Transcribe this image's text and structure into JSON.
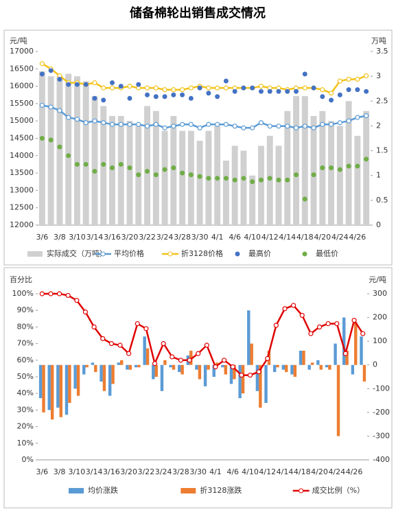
{
  "title": "储备棉轮出销售成交情况",
  "chart_data": [
    {
      "type": "combo",
      "y_label": "元/吨",
      "y2_label": "万吨",
      "categories": [
        "3/6",
        null,
        "3/8",
        null,
        "3/10",
        null,
        "3/14",
        null,
        "3/16",
        null,
        "3/20",
        null,
        "3/22",
        null,
        "3/24",
        null,
        "3/28",
        null,
        "3/30",
        null,
        "4/1",
        null,
        "4/6",
        null,
        "4/10",
        null,
        "4/12",
        null,
        "4/14",
        null,
        "4/18",
        null,
        "4/20",
        null,
        "4/24",
        null,
        "4/26",
        null
      ],
      "ylim": [
        12000,
        17000
      ],
      "yticks": [
        12000,
        12500,
        13000,
        13500,
        14000,
        14500,
        15000,
        15500,
        16000,
        16500,
        17000
      ],
      "y2lim": [
        0,
        3.5
      ],
      "y2ticks": [
        0,
        0.5,
        1,
        1.5,
        2,
        2.5,
        3,
        3.5
      ],
      "series": [
        {
          "name": "实际成交（万吨）",
          "kind": "bar",
          "axis": "y2",
          "color": "#d0d0d0",
          "values": [
            3.1,
            3.0,
            3.0,
            3.05,
            3.0,
            2.9,
            2.6,
            2.4,
            2.2,
            2.2,
            2.1,
            2.0,
            2.4,
            2.3,
            1.9,
            2.2,
            1.9,
            1.9,
            1.7,
            1.9,
            2.0,
            1.3,
            1.6,
            1.5,
            1.0,
            1.6,
            1.8,
            1.6,
            2.3,
            2.6,
            2.6,
            2.2,
            2.3,
            2.1,
            2.0,
            2.5,
            1.8,
            2.3
          ]
        },
        {
          "name": "平均价格",
          "kind": "line",
          "color": "#5b9bd5",
          "values": [
            15450,
            15400,
            15300,
            15100,
            15050,
            14950,
            15000,
            14950,
            14900,
            14900,
            14900,
            14900,
            14850,
            14900,
            14800,
            14850,
            14900,
            14900,
            14800,
            14900,
            14900,
            14900,
            14850,
            14800,
            14800,
            14950,
            14850,
            14850,
            14850,
            14800,
            14850,
            14800,
            14900,
            14900,
            14950,
            15000,
            15100,
            15150
          ]
        },
        {
          "name": "折3128价格",
          "kind": "line",
          "color": "#f2c21a",
          "values": [
            16650,
            16500,
            16300,
            16100,
            16100,
            16050,
            16100,
            15950,
            15950,
            15950,
            16000,
            15950,
            15950,
            15950,
            15900,
            15900,
            15900,
            15950,
            16000,
            15950,
            15950,
            15950,
            15950,
            15950,
            15950,
            16000,
            15950,
            15950,
            15900,
            15950,
            15950,
            15950,
            15900,
            15800,
            16150,
            16200,
            16200,
            16300
          ]
        },
        {
          "name": "最高价",
          "kind": "dot",
          "color": "#4472c4",
          "values": [
            16350,
            16450,
            16200,
            16050,
            16050,
            16050,
            15650,
            15600,
            16100,
            16000,
            15650,
            16050,
            15750,
            15700,
            15700,
            15750,
            15750,
            15650,
            15950,
            15800,
            15700,
            16150,
            15850,
            15950,
            15950,
            15850,
            15850,
            15850,
            15850,
            15850,
            16350,
            15950,
            15700,
            15600,
            15750,
            15900,
            15900,
            15850
          ]
        },
        {
          "name": "最低价",
          "kind": "dot",
          "color": "#70ad47",
          "values": [
            14500,
            14450,
            14250,
            14000,
            13750,
            13750,
            13550,
            13750,
            13650,
            13750,
            13650,
            13450,
            13550,
            13450,
            13600,
            13650,
            13500,
            13450,
            13400,
            13350,
            13350,
            13350,
            13300,
            13350,
            13250,
            13300,
            13350,
            13300,
            13300,
            13450,
            12750,
            13450,
            13650,
            13650,
            13600,
            13700,
            13700,
            13900
          ]
        }
      ]
    },
    {
      "type": "combo",
      "y_label": "百分比",
      "y2_label": "元/吨",
      "categories": [
        "3/6",
        null,
        "3/8",
        null,
        "3/10",
        null,
        "3/14",
        null,
        "3/16",
        null,
        "3/20",
        null,
        "3/22",
        null,
        "3/24",
        null,
        "3/28",
        null,
        "3/30",
        null,
        "4/1",
        null,
        "4/6",
        null,
        "4/10",
        null,
        "4/12",
        null,
        "4/14",
        null,
        "4/18",
        null,
        "4/20",
        null,
        "4/24",
        null,
        "4/26",
        null
      ],
      "ylim": [
        0,
        100
      ],
      "yticks": [
        {
          "value": 0,
          "label": "0%"
        },
        {
          "value": 10,
          "label": "10%"
        },
        {
          "value": 20,
          "label": "20%"
        },
        {
          "value": 30,
          "label": "30%"
        },
        {
          "value": 40,
          "label": "40%"
        },
        {
          "value": 50,
          "label": "50%"
        },
        {
          "value": 60,
          "label": "60%"
        },
        {
          "value": 70,
          "label": "70%"
        },
        {
          "value": 80,
          "label": "80%"
        },
        {
          "value": 90,
          "label": "90%"
        },
        {
          "value": 100,
          "label": "100%"
        }
      ],
      "y2lim": [
        -400,
        300
      ],
      "y2ticks": [
        -400,
        -300,
        -200,
        -100,
        0,
        100,
        200,
        300
      ],
      "series": [
        {
          "name": "均价涨跌",
          "kind": "bar",
          "axis": "y2",
          "color": "#5b9bd5",
          "values": [
            -140,
            -190,
            -180,
            -210,
            -100,
            -40,
            10,
            -70,
            -130,
            10,
            -20,
            -10,
            120,
            -60,
            -110,
            -10,
            -30,
            40,
            -20,
            -90,
            -50,
            -10,
            -80,
            -140,
            230,
            -110,
            -160,
            -30,
            -20,
            -40,
            60,
            -20,
            20,
            -10,
            90,
            200,
            -40,
            120
          ]
        },
        {
          "name": "折3128涨跌",
          "kind": "bar",
          "axis": "y2",
          "color": "#ed7d31",
          "values": [
            -200,
            -230,
            -220,
            -160,
            -130,
            -10,
            -30,
            -110,
            -80,
            20,
            -20,
            -10,
            70,
            -50,
            20,
            -20,
            -40,
            60,
            -60,
            -20,
            10,
            -40,
            -60,
            -120,
            90,
            -180,
            60,
            -10,
            -30,
            -50,
            60,
            10,
            -20,
            -20,
            -300,
            60,
            180,
            -70
          ]
        },
        {
          "name": "成交比例（%）",
          "kind": "line",
          "color": "#e00000",
          "marker_fill": "#ffffff",
          "values": [
            100,
            100,
            100,
            99,
            96,
            89,
            80,
            73,
            70,
            69,
            64,
            82,
            79,
            58,
            70,
            62,
            60,
            60,
            64,
            69,
            56,
            60,
            56,
            51,
            51,
            53,
            61,
            81,
            91,
            93,
            87,
            76,
            80,
            82,
            82,
            64,
            84,
            76
          ]
        }
      ]
    }
  ]
}
